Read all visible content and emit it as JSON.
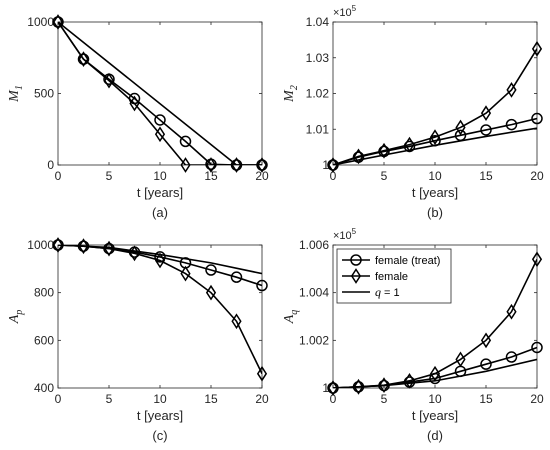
{
  "chart_data": [
    {
      "type": "line",
      "caption": "(a)",
      "xlabel": "t [years]",
      "ylabel_main": "M",
      "ylabel_sub": "1",
      "xlim": [
        0,
        20
      ],
      "ylim": [
        0,
        1000
      ],
      "xticks": [
        0,
        5,
        10,
        15,
        20
      ],
      "yticks": [
        0,
        500,
        1000
      ],
      "exponent": "",
      "series": [
        {
          "marker": "circle",
          "x": [
            0,
            2.5,
            5,
            7.5,
            10,
            12.5,
            15,
            17.5,
            20
          ],
          "y": [
            1000,
            740,
            600,
            465,
            315,
            165,
            5,
            0,
            0
          ]
        },
        {
          "marker": "diamond",
          "x": [
            0,
            2.5,
            5,
            7.5,
            10,
            12.5,
            15,
            17.5,
            20
          ],
          "y": [
            1000,
            740,
            590,
            430,
            215,
            0,
            0,
            0,
            0
          ]
        },
        {
          "marker": "none",
          "x": [
            0,
            17.5,
            20
          ],
          "y": [
            1000,
            0,
            0
          ]
        }
      ]
    },
    {
      "type": "line",
      "caption": "(b)",
      "xlabel": "t [years]",
      "ylabel_main": "M",
      "ylabel_sub": "2",
      "xlim": [
        0,
        20
      ],
      "ylim": [
        1.0,
        1.04
      ],
      "xticks": [
        0,
        5,
        10,
        15,
        20
      ],
      "yticks": [
        1.0,
        1.01,
        1.02,
        1.03,
        1.04
      ],
      "ytick_labels": [
        "1",
        "1.01",
        "1.02",
        "1.03",
        "1.04"
      ],
      "exponent": "10^5",
      "series": [
        {
          "marker": "circle",
          "x": [
            0,
            2.5,
            5,
            7.5,
            10,
            12.5,
            15,
            17.5,
            20
          ],
          "y": [
            1.0,
            1.0022,
            1.0038,
            1.0052,
            1.0068,
            1.0083,
            1.0098,
            1.0113,
            1.013
          ]
        },
        {
          "marker": "diamond",
          "x": [
            0,
            2.5,
            5,
            7.5,
            10,
            12.5,
            15,
            17.5,
            20
          ],
          "y": [
            1.0,
            1.0024,
            1.004,
            1.0057,
            1.0078,
            1.0105,
            1.0145,
            1.021,
            1.0325
          ]
        },
        {
          "marker": "none",
          "x": [
            0,
            5,
            10,
            15,
            20
          ],
          "y": [
            1.0,
            1.0028,
            1.0055,
            1.008,
            1.0103
          ]
        }
      ]
    },
    {
      "type": "line",
      "caption": "(c)",
      "xlabel": "t [years]",
      "ylabel_main": "A",
      "ylabel_sub": "p",
      "xlim": [
        0,
        20
      ],
      "ylim": [
        400,
        1000
      ],
      "xticks": [
        0,
        5,
        10,
        15,
        20
      ],
      "yticks": [
        400,
        600,
        800,
        1000
      ],
      "exponent": "",
      "series": [
        {
          "marker": "circle",
          "x": [
            0,
            2.5,
            5,
            7.5,
            10,
            12.5,
            15,
            17.5,
            20
          ],
          "y": [
            1000,
            995,
            985,
            970,
            950,
            925,
            895,
            865,
            830
          ]
        },
        {
          "marker": "diamond",
          "x": [
            0,
            2.5,
            5,
            7.5,
            10,
            12.5,
            15,
            17.5,
            20
          ],
          "y": [
            1000,
            995,
            985,
            965,
            935,
            880,
            800,
            680,
            460
          ]
        },
        {
          "marker": "none",
          "x": [
            0,
            5,
            10,
            15,
            20
          ],
          "y": [
            1000,
            990,
            960,
            925,
            880
          ]
        }
      ]
    },
    {
      "type": "line",
      "caption": "(d)",
      "xlabel": "t [years]",
      "ylabel_main": "A",
      "ylabel_sub": "q",
      "xlim": [
        0,
        20
      ],
      "ylim": [
        1.0,
        1.006
      ],
      "xticks": [
        0,
        5,
        10,
        15,
        20
      ],
      "yticks": [
        1.0,
        1.002,
        1.004,
        1.006
      ],
      "ytick_labels": [
        "1",
        "1.002",
        "1.004",
        "1.006"
      ],
      "exponent": "10^5",
      "series": [
        {
          "marker": "circle",
          "name": "female (treat)",
          "x": [
            0,
            2.5,
            5,
            7.5,
            10,
            12.5,
            15,
            17.5,
            20
          ],
          "y": [
            1.0,
            1.00005,
            1.0001,
            1.00025,
            1.0004,
            1.0007,
            1.001,
            1.0013,
            1.0017
          ]
        },
        {
          "marker": "diamond",
          "name": "female",
          "x": [
            0,
            2.5,
            5,
            7.5,
            10,
            12.5,
            15,
            17.5,
            20
          ],
          "y": [
            1.0,
            1.00005,
            1.00012,
            1.0003,
            1.0006,
            1.0012,
            1.002,
            1.0032,
            1.0054
          ]
        },
        {
          "marker": "none",
          "name": "q = 1",
          "x": [
            0,
            5,
            10,
            15,
            20
          ],
          "y": [
            1.0,
            1.0001,
            1.0003,
            1.0007,
            1.0012
          ]
        }
      ],
      "legend": {
        "position": "top-left"
      }
    }
  ]
}
